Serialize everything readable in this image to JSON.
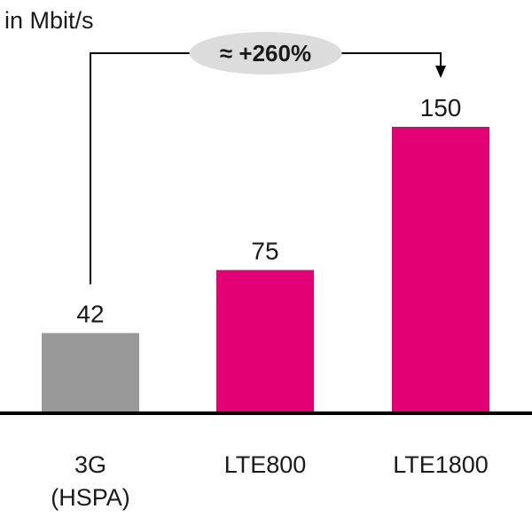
{
  "chart_data": {
    "type": "bar",
    "unit_label": "in Mbit/s",
    "categories": [
      [
        "3G",
        "(HSPA)"
      ],
      [
        "LTE800"
      ],
      [
        "LTE1800"
      ]
    ],
    "values": [
      42,
      75,
      150
    ],
    "colors": [
      "#999999",
      "#e20074",
      "#e20074"
    ],
    "ylim": [
      0,
      150
    ],
    "grid": false,
    "legend": "none",
    "annotation": {
      "text": "≈ +260%",
      "from_category": 0,
      "to_category": 2
    }
  }
}
